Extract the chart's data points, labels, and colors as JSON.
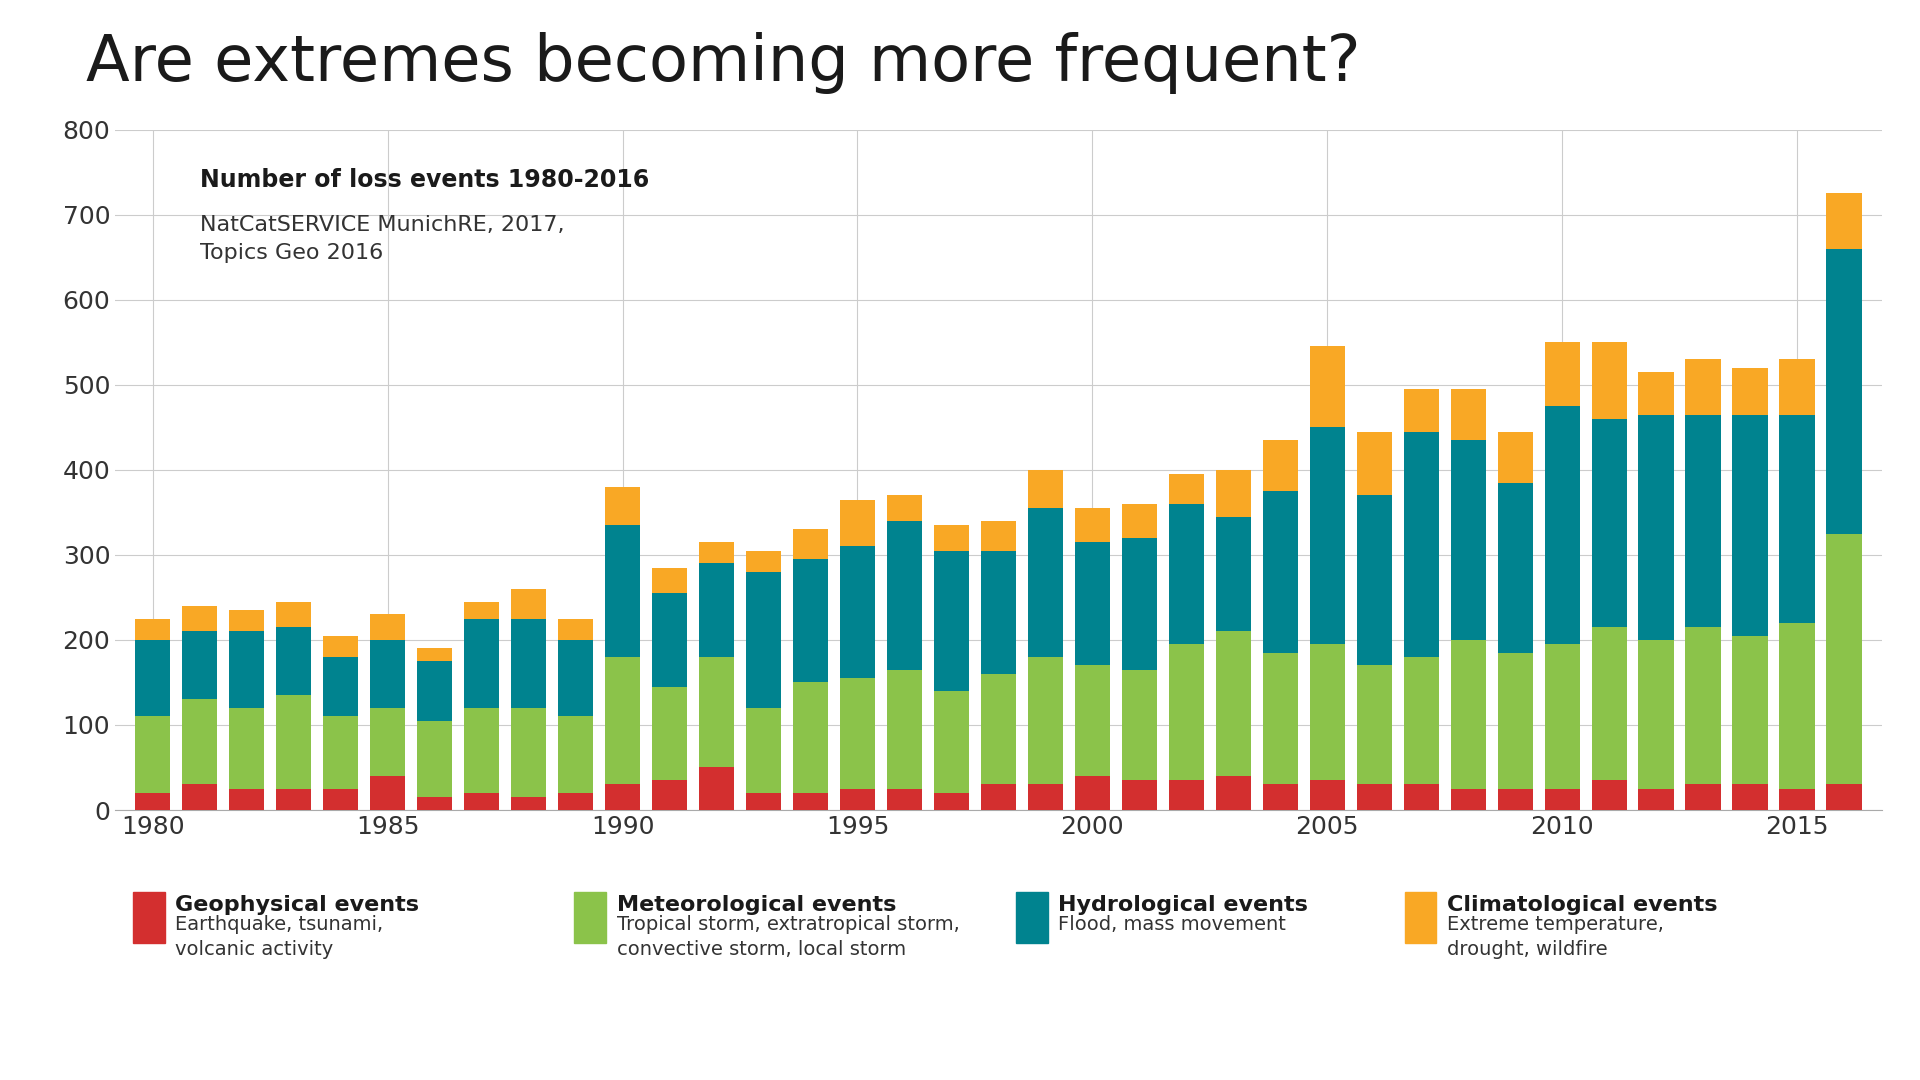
{
  "title": "Are extremes becoming more frequent?",
  "subtitle_bold": "Number of loss events 1980-2016",
  "subtitle_normal": "NatCatSERVICE MunichRE, 2017,\nTopics Geo 2016",
  "years": [
    1980,
    1981,
    1982,
    1983,
    1984,
    1985,
    1986,
    1987,
    1988,
    1989,
    1990,
    1991,
    1992,
    1993,
    1994,
    1995,
    1996,
    1997,
    1998,
    1999,
    2000,
    2001,
    2002,
    2003,
    2004,
    2005,
    2006,
    2007,
    2008,
    2009,
    2010,
    2011,
    2012,
    2013,
    2014,
    2015,
    2016
  ],
  "geophysical": [
    20,
    30,
    25,
    25,
    25,
    40,
    15,
    20,
    15,
    20,
    30,
    35,
    50,
    20,
    20,
    25,
    25,
    20,
    30,
    30,
    40,
    35,
    35,
    40,
    30,
    35,
    30,
    30,
    25,
    25,
    25,
    35,
    25,
    30,
    30,
    25,
    30
  ],
  "meteorological": [
    90,
    100,
    95,
    110,
    85,
    80,
    90,
    100,
    105,
    90,
    150,
    110,
    130,
    100,
    130,
    130,
    140,
    120,
    130,
    150,
    130,
    130,
    160,
    170,
    155,
    160,
    140,
    150,
    175,
    160,
    170,
    180,
    175,
    185,
    175,
    195,
    295
  ],
  "hydrological": [
    90,
    80,
    90,
    80,
    70,
    80,
    70,
    105,
    105,
    90,
    155,
    110,
    110,
    160,
    145,
    155,
    175,
    165,
    145,
    175,
    145,
    155,
    165,
    135,
    190,
    255,
    200,
    265,
    235,
    200,
    280,
    245,
    265,
    250,
    260,
    245,
    335
  ],
  "climatological": [
    25,
    30,
    25,
    30,
    25,
    30,
    15,
    20,
    35,
    25,
    45,
    30,
    25,
    25,
    35,
    55,
    30,
    30,
    35,
    45,
    40,
    40,
    35,
    55,
    60,
    95,
    75,
    50,
    60,
    60,
    75,
    90,
    50,
    65,
    55,
    65,
    65
  ],
  "color_geophysical": "#d32f2f",
  "color_meteorological": "#8bc34a",
  "color_hydrological": "#00838f",
  "color_climatological": "#f9a825",
  "ylim": [
    0,
    800
  ],
  "yticks": [
    0,
    100,
    200,
    300,
    400,
    500,
    600,
    700,
    800
  ],
  "background_color": "#ffffff",
  "grid_color": "#cccccc",
  "legend_entries": [
    {
      "label": "Geophysical events",
      "sub": "Earthquake, tsunami,\nvolcanic activity",
      "color": "#d32f2f"
    },
    {
      "label": "Meteorological events",
      "sub": "Tropical storm, extratropical storm,\nconvective storm, local storm",
      "color": "#8bc34a"
    },
    {
      "label": "Hydrological events",
      "sub": "Flood, mass movement",
      "color": "#00838f"
    },
    {
      "label": "Climatological events",
      "sub": "Extreme temperature,\ndrought, wildfire",
      "color": "#f9a825"
    }
  ]
}
